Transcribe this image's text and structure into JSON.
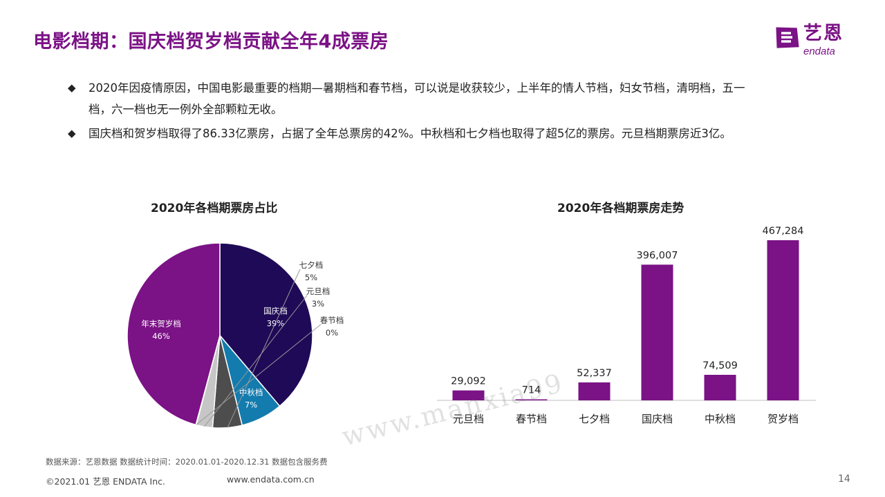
{
  "header": {
    "title": "电影档期：国庆档贺岁档贡献全年4成票房"
  },
  "logo": {
    "cn": "艺恩",
    "en": "endata",
    "colors": {
      "primary": "#7b1286"
    }
  },
  "bullets": [
    {
      "line1": "2020年因疫情原因，中国电影最重要的档期—暑期档和春节档，可以说是收获较少，上半年的情人节档，妇女节档，清明档，五一",
      "line2": "档，六一档也无一例外全部颗粒无收。"
    },
    {
      "line1": "国庆档和贺岁档取得了86.33亿票房，占据了全年总票房的42%。中秋档和七夕档也取得了超5亿的票房。元旦档期票房近3亿。"
    }
  ],
  "bullet_symbol": "◆",
  "chart_data": [
    {
      "type": "pie",
      "title": "2020年各档期票房占比",
      "slices": [
        {
          "name": "国庆档",
          "pct_label": "39%",
          "value": 396007,
          "color": "#1f0a57"
        },
        {
          "name": "中秋档",
          "pct_label": "7%",
          "value": 74509,
          "color": "#137bae"
        },
        {
          "name": "七夕档",
          "pct_label": "5%",
          "value": 52337,
          "color": "#4d4d4d"
        },
        {
          "name": "元旦档",
          "pct_label": "3%",
          "value": 29092,
          "color": "#c6c6c6"
        },
        {
          "name": "春节档",
          "pct_label": "0%",
          "value": 714,
          "color": "#e6e6e6"
        },
        {
          "name": "年末贺岁档",
          "pct_label": "46%",
          "value": 467284,
          "color": "#7b1286"
        }
      ]
    },
    {
      "type": "bar",
      "title": "2020年各档期票房走势",
      "categories": [
        "元旦档",
        "春节档",
        "七夕档",
        "国庆档",
        "中秋档",
        "贺岁档"
      ],
      "values": [
        29092,
        714,
        52337,
        396007,
        74509,
        467284
      ],
      "value_labels": [
        "29,092",
        "714",
        "52,337",
        "396,007",
        "74,509",
        "467,284"
      ],
      "bar_color": "#7b1286",
      "ylim": [
        0,
        467284
      ]
    }
  ],
  "footer": {
    "source": "数据来源：艺恩数据   数据统计时间：2020.01.01-2020.12.31 数据包含服务费",
    "copyright": "©2021.01 艺恩 ENDATA Inc.",
    "url": "www.endata.com.cn",
    "page": "14"
  },
  "watermark": "www.manxia99"
}
